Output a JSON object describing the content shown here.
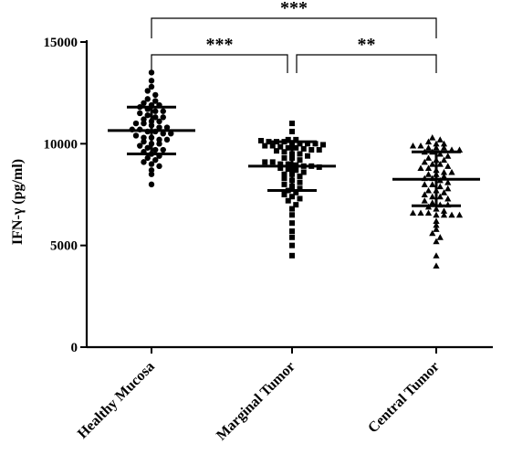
{
  "chart_data": {
    "type": "scatter",
    "title": "",
    "xlabel": "",
    "ylabel": "IFN-γ (pg/ml)",
    "ylim": [
      0,
      15000
    ],
    "yticks": [
      "0",
      "5000",
      "10000",
      "15000"
    ],
    "grid": false,
    "categories": [
      "Healthy Mucosa",
      "Marginal Tumor",
      "Central Tumor"
    ],
    "series": [
      {
        "marker": "circle",
        "mean": 10650,
        "sd_low": 9500,
        "sd_high": 11800,
        "values": [
          13500,
          13100,
          12800,
          12600,
          12400,
          12200,
          12100,
          12000,
          11900,
          11900,
          11800,
          11700,
          11600,
          11600,
          11500,
          11400,
          11300,
          11300,
          11200,
          11100,
          11100,
          11000,
          11000,
          10900,
          10800,
          10800,
          10700,
          10700,
          10600,
          10600,
          10500,
          10500,
          10400,
          10300,
          10300,
          10200,
          10200,
          10100,
          10000,
          10000,
          9900,
          9800,
          9700,
          9700,
          9600,
          9500,
          9400,
          9300,
          9200,
          9100,
          9000,
          8900,
          8700,
          8500,
          8000
        ]
      },
      {
        "marker": "square",
        "mean": 8900,
        "sd_low": 7700,
        "sd_high": 10100,
        "values": [
          11000,
          10600,
          10200,
          10200,
          10150,
          10100,
          10100,
          10100,
          10050,
          10000,
          10000,
          10000,
          9950,
          9900,
          9900,
          9850,
          9800,
          9800,
          9750,
          9700,
          9700,
          9650,
          9600,
          9500,
          9500,
          9400,
          9300,
          9300,
          9200,
          9100,
          9100,
          9000,
          9000,
          8950,
          8900,
          8900,
          8850,
          8800,
          8750,
          8700,
          8600,
          8500,
          8500,
          8400,
          8300,
          8200,
          8100,
          8000,
          7900,
          7800,
          7700,
          7600,
          7500,
          7400,
          7300,
          7200,
          7000,
          6800,
          6500,
          6100,
          5700,
          5400,
          5000,
          4500
        ]
      },
      {
        "marker": "triangle",
        "mean": 8250,
        "sd_low": 6950,
        "sd_high": 9600,
        "values": [
          10300,
          10200,
          10100,
          10000,
          10000,
          9900,
          9900,
          9800,
          9800,
          9800,
          9700,
          9700,
          9600,
          9600,
          9500,
          9400,
          9300,
          9200,
          9200,
          9100,
          9000,
          9000,
          8900,
          8800,
          8800,
          8700,
          8600,
          8600,
          8500,
          8500,
          8400,
          8300,
          8300,
          8200,
          8100,
          8000,
          8000,
          7900,
          7800,
          7700,
          7700,
          7600,
          7500,
          7400,
          7400,
          7300,
          7200,
          7100,
          7000,
          7000,
          6900,
          6800,
          6700,
          6600,
          6600,
          6600,
          6500,
          6500,
          6500,
          6500,
          6200,
          6000,
          5800,
          5600,
          5400,
          5200,
          4500,
          4000
        ]
      }
    ],
    "annotations": [
      {
        "between": [
          "Healthy Mucosa",
          "Marginal Tumor"
        ],
        "label": "***"
      },
      {
        "between": [
          "Marginal Tumor",
          "Central Tumor"
        ],
        "label": "**"
      },
      {
        "between": [
          "Healthy Mucosa",
          "Central Tumor"
        ],
        "label": "***"
      }
    ]
  }
}
